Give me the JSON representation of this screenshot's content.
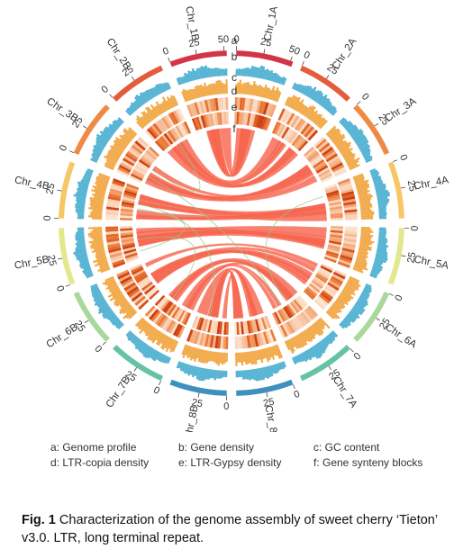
{
  "chromosomes": [
    {
      "name": "Chr_1A",
      "ticks": [
        "0",
        "25",
        "50"
      ],
      "color": "#d3344a"
    },
    {
      "name": "Chr_2A",
      "ticks": [
        "0",
        "25"
      ],
      "color": "#e35d3b"
    },
    {
      "name": "Chr_3A",
      "ticks": [
        "0",
        "25"
      ],
      "color": "#ef8a45"
    },
    {
      "name": "Chr_4A",
      "ticks": [
        "0",
        "25"
      ],
      "color": "#f7c766"
    },
    {
      "name": "Chr_5A",
      "ticks": [
        "0",
        "25"
      ],
      "color": "#e3e88e"
    },
    {
      "name": "Chr_6A",
      "ticks": [
        "0",
        "25"
      ],
      "color": "#aad79c"
    },
    {
      "name": "Chr_7A",
      "ticks": [
        "0",
        "25"
      ],
      "color": "#66c2a5"
    },
    {
      "name": "Chr_8A",
      "ticks": [
        "0",
        "25"
      ],
      "color": "#3f8fbf"
    },
    {
      "name": "Chr_8B",
      "ticks": [
        "0",
        "25"
      ],
      "color": "#3f8fbf"
    },
    {
      "name": "Chr_7B",
      "ticks": [
        "0",
        "25"
      ],
      "color": "#66c2a5"
    },
    {
      "name": "Chr_6B",
      "ticks": [
        "0",
        "25"
      ],
      "color": "#aad79c"
    },
    {
      "name": "Chr_5B",
      "ticks": [
        "0",
        "25"
      ],
      "color": "#e3e88e"
    },
    {
      "name": "Chr_4B",
      "ticks": [
        "0",
        "25"
      ],
      "color": "#f7c766"
    },
    {
      "name": "Chr_3B",
      "ticks": [
        "0",
        "25"
      ],
      "color": "#ef8a45"
    },
    {
      "name": "Chr_2B",
      "ticks": [
        "0",
        "25"
      ],
      "color": "#e35d3b"
    },
    {
      "name": "Chr_1B",
      "ticks": [
        "0",
        "25",
        "50"
      ],
      "color": "#d3344a"
    }
  ],
  "track_letters": [
    "a",
    "b",
    "c",
    "d",
    "e",
    "f"
  ],
  "legend": [
    [
      "a: Genome profile",
      "b: Gene density",
      "c: GC content"
    ],
    [
      "d: LTR-copia density",
      "e: LTR-Gypsy density",
      "f: Gene synteny blocks"
    ]
  ],
  "caption": {
    "fig_label": "Fig. 1",
    "text": "Characterization of the genome assembly of sweet cherry ‘Tieton’ v3.0.  LTR, long terminal repeat."
  },
  "colors": {
    "gene_density": "#55b3d3",
    "gc_content": "#f2aa4a",
    "links": "#f6664f",
    "links_alt": "#96c98b",
    "heat_low": "#fff0e2",
    "heat_high": "#cc3b0e"
  }
}
